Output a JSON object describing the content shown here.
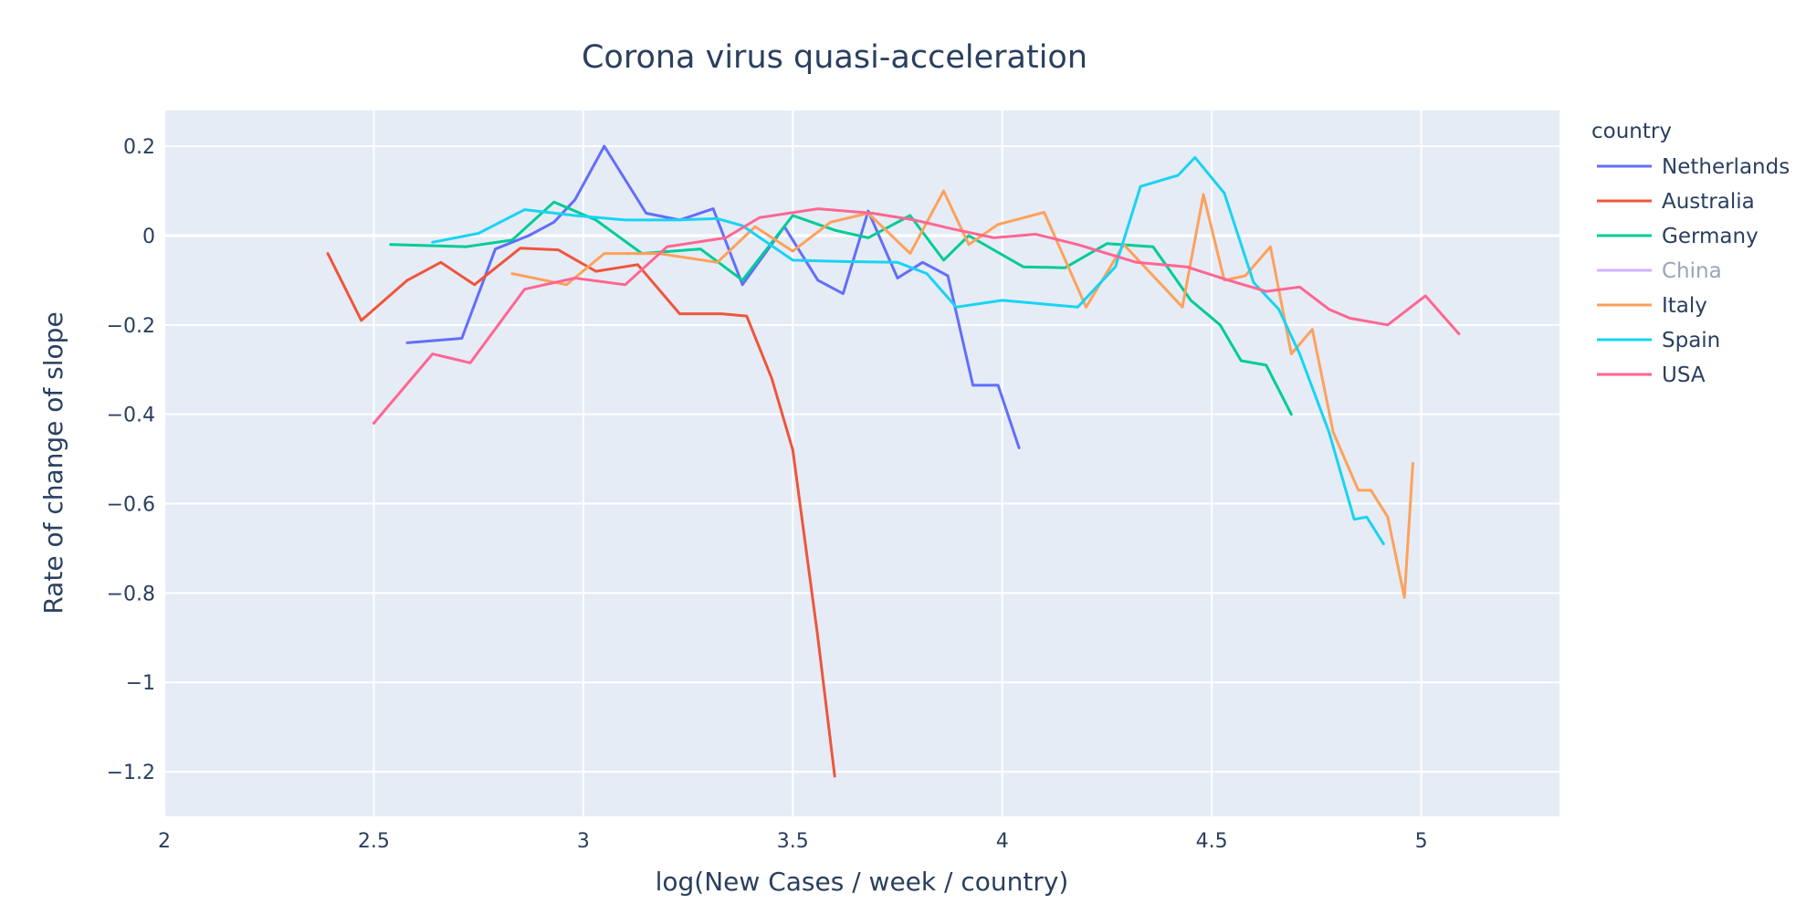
{
  "chart_data": {
    "type": "line",
    "title": "Corona virus quasi-acceleration",
    "xlabel": "log(New Cases / week / country)",
    "ylabel": "Rate of change of slope",
    "xlim": [
      2.0,
      5.33
    ],
    "ylim": [
      -1.3,
      0.28
    ],
    "x_ticks": [
      2,
      2.5,
      3,
      3.5,
      4,
      4.5,
      5
    ],
    "x_tick_labels": [
      "2",
      "2.5",
      "3",
      "3.5",
      "4",
      "4.5",
      "5"
    ],
    "y_ticks": [
      0.2,
      0,
      -0.2,
      -0.4,
      -0.6,
      -0.8,
      -1,
      -1.2
    ],
    "y_tick_labels": [
      "0.2",
      "0",
      "−0.2",
      "−0.4",
      "−0.6",
      "−0.8",
      "−1",
      "−1.2"
    ],
    "grid": true,
    "legend_title": "country",
    "legend_position": "right",
    "series": [
      {
        "name": "Netherlands",
        "color": "#636efa",
        "visible": true,
        "x": [
          2.58,
          2.71,
          2.79,
          2.87,
          2.93,
          2.98,
          3.05,
          3.15,
          3.23,
          3.31,
          3.38,
          3.48,
          3.56,
          3.62,
          3.68,
          3.75,
          3.81,
          3.87,
          3.93,
          3.99,
          4.04
        ],
        "y": [
          -0.24,
          -0.23,
          -0.03,
          0.0,
          0.03,
          0.08,
          0.2,
          0.05,
          0.035,
          0.06,
          -0.11,
          0.02,
          -0.1,
          -0.13,
          0.055,
          -0.095,
          -0.06,
          -0.09,
          -0.335,
          -0.335,
          -0.475
        ]
      },
      {
        "name": "Australia",
        "color": "#EF553B",
        "visible": true,
        "x": [
          2.39,
          2.47,
          2.58,
          2.66,
          2.74,
          2.85,
          2.94,
          3.03,
          3.13,
          3.23,
          3.33,
          3.39,
          3.45,
          3.5,
          3.56,
          3.6
        ],
        "y": [
          -0.04,
          -0.19,
          -0.1,
          -0.06,
          -0.11,
          -0.028,
          -0.032,
          -0.08,
          -0.065,
          -0.175,
          -0.175,
          -0.18,
          -0.32,
          -0.48,
          -0.9,
          -1.21
        ]
      },
      {
        "name": "Germany",
        "color": "#00cc96",
        "visible": true,
        "x": [
          2.54,
          2.72,
          2.83,
          2.93,
          3.03,
          3.14,
          3.28,
          3.38,
          3.5,
          3.6,
          3.68,
          3.78,
          3.86,
          3.92,
          4.05,
          4.15,
          4.25,
          4.36,
          4.45,
          4.52,
          4.57,
          4.63,
          4.69
        ],
        "y": [
          -0.02,
          -0.025,
          -0.01,
          0.075,
          0.035,
          -0.04,
          -0.03,
          -0.1,
          0.045,
          0.012,
          -0.005,
          0.045,
          -0.055,
          0.0,
          -0.07,
          -0.072,
          -0.018,
          -0.025,
          -0.145,
          -0.2,
          -0.28,
          -0.29,
          -0.4
        ]
      },
      {
        "name": "China",
        "color": "#ab63fa",
        "visible": false,
        "x": [],
        "y": []
      },
      {
        "name": "Italy",
        "color": "#FFA15A",
        "visible": true,
        "x": [
          2.83,
          2.96,
          3.05,
          3.18,
          3.32,
          3.41,
          3.5,
          3.59,
          3.68,
          3.78,
          3.86,
          3.92,
          3.99,
          4.1,
          4.2,
          4.29,
          4.34,
          4.43,
          4.48,
          4.53,
          4.58,
          4.64,
          4.69,
          4.74,
          4.79,
          4.85,
          4.88,
          4.92,
          4.96,
          4.98
        ],
        "y": [
          -0.085,
          -0.11,
          -0.04,
          -0.04,
          -0.06,
          0.02,
          -0.035,
          0.03,
          0.05,
          -0.04,
          0.1,
          -0.02,
          0.025,
          0.052,
          -0.16,
          -0.02,
          -0.07,
          -0.16,
          0.092,
          -0.1,
          -0.09,
          -0.025,
          -0.265,
          -0.21,
          -0.44,
          -0.57,
          -0.57,
          -0.63,
          -0.81,
          -0.51
        ]
      },
      {
        "name": "Spain",
        "color": "#19d3f3",
        "visible": true,
        "x": [
          2.64,
          2.75,
          2.86,
          2.98,
          3.1,
          3.22,
          3.32,
          3.38,
          3.5,
          3.62,
          3.75,
          3.82,
          3.89,
          4.0,
          4.18,
          4.27,
          4.33,
          4.42,
          4.46,
          4.53,
          4.6,
          4.66,
          4.71,
          4.78,
          4.84,
          4.87,
          4.91
        ],
        "y": [
          -0.015,
          0.005,
          0.058,
          0.045,
          0.035,
          0.035,
          0.038,
          0.022,
          -0.055,
          -0.058,
          -0.06,
          -0.085,
          -0.16,
          -0.145,
          -0.16,
          -0.07,
          0.11,
          0.135,
          0.175,
          0.095,
          -0.105,
          -0.165,
          -0.265,
          -0.44,
          -0.635,
          -0.63,
          -0.69
        ]
      },
      {
        "name": "USA",
        "color": "#FF6692",
        "visible": true,
        "x": [
          2.5,
          2.64,
          2.73,
          2.86,
          2.98,
          3.1,
          3.2,
          3.34,
          3.42,
          3.56,
          3.69,
          3.79,
          3.88,
          3.98,
          4.08,
          4.18,
          4.32,
          4.44,
          4.54,
          4.63,
          4.71,
          4.78,
          4.83,
          4.92,
          5.01,
          5.09
        ],
        "y": [
          -0.42,
          -0.265,
          -0.285,
          -0.12,
          -0.095,
          -0.11,
          -0.025,
          -0.005,
          0.04,
          0.06,
          0.05,
          0.035,
          0.015,
          -0.005,
          0.003,
          -0.02,
          -0.06,
          -0.07,
          -0.1,
          -0.125,
          -0.115,
          -0.165,
          -0.185,
          -0.2,
          -0.135,
          -0.22
        ]
      }
    ]
  }
}
